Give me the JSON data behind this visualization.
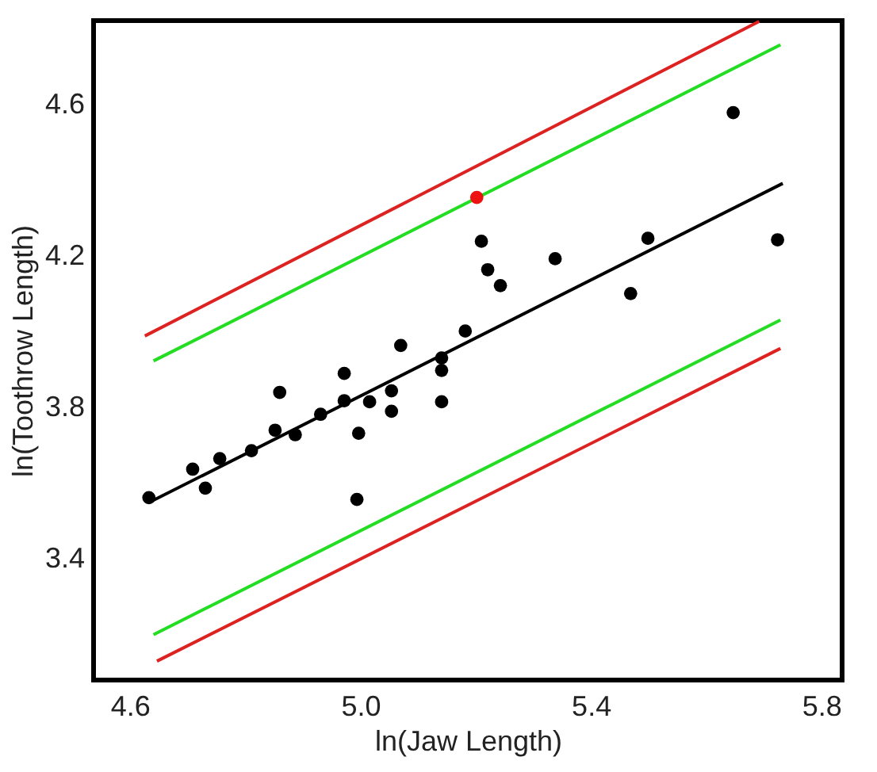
{
  "chart_data": {
    "type": "scatter",
    "xlabel": "ln(Jaw Length)",
    "ylabel": "ln(Toothrow Length)",
    "xlim": [
      4.537,
      5.836
    ],
    "ylim": [
      3.08,
      4.822
    ],
    "xticks": [
      {
        "value": 4.6,
        "label": "4.6"
      },
      {
        "value": 5.0,
        "label": "5.0"
      },
      {
        "value": 5.4,
        "label": "5.4"
      },
      {
        "value": 5.8,
        "label": "5.8"
      }
    ],
    "yticks": [
      3.4,
      3.8,
      4.2,
      4.6
    ],
    "grid": false,
    "series": [
      {
        "type": "line",
        "color": "#000000",
        "x": [
          4.633,
          5.733
        ],
        "values": [
          3.549,
          4.392
        ]
      },
      {
        "type": "line",
        "color": "#22dd22",
        "x": [
          4.641,
          5.729
        ],
        "values": [
          3.923,
          4.758
        ]
      },
      {
        "type": "line",
        "color": "#dd2222",
        "x": [
          4.626,
          5.692
        ],
        "values": [
          3.989,
          4.82
        ]
      },
      {
        "type": "line",
        "color": "#22dd22",
        "x": [
          4.641,
          5.729
        ],
        "values": [
          3.2,
          4.031
        ]
      },
      {
        "type": "line",
        "color": "#dd2222",
        "x": [
          4.647,
          5.729
        ],
        "values": [
          3.13,
          3.956
        ]
      },
      {
        "marker": "circle",
        "color": "#000000",
        "x": [
          4.633,
          4.709,
          4.731,
          4.756,
          4.811,
          4.852,
          4.86,
          4.887,
          4.931,
          4.972,
          4.972,
          4.997,
          4.994,
          5.016,
          5.054,
          5.054,
          5.07,
          5.141,
          5.141,
          5.141,
          5.182,
          5.21,
          5.221,
          5.243,
          5.338,
          5.469,
          5.499,
          5.647,
          5.724
        ],
        "values": [
          3.562,
          3.637,
          3.587,
          3.665,
          3.686,
          3.74,
          3.84,
          3.728,
          3.782,
          3.818,
          3.89,
          3.732,
          3.557,
          3.815,
          3.844,
          3.79,
          3.964,
          3.931,
          3.898,
          3.815,
          4.002,
          4.239,
          4.164,
          4.122,
          4.193,
          4.101,
          4.247,
          4.579,
          4.243
        ]
      },
      {
        "marker": "circle",
        "color": "#ee1111",
        "x": [
          5.202
        ],
        "values": [
          4.355
        ]
      }
    ]
  }
}
